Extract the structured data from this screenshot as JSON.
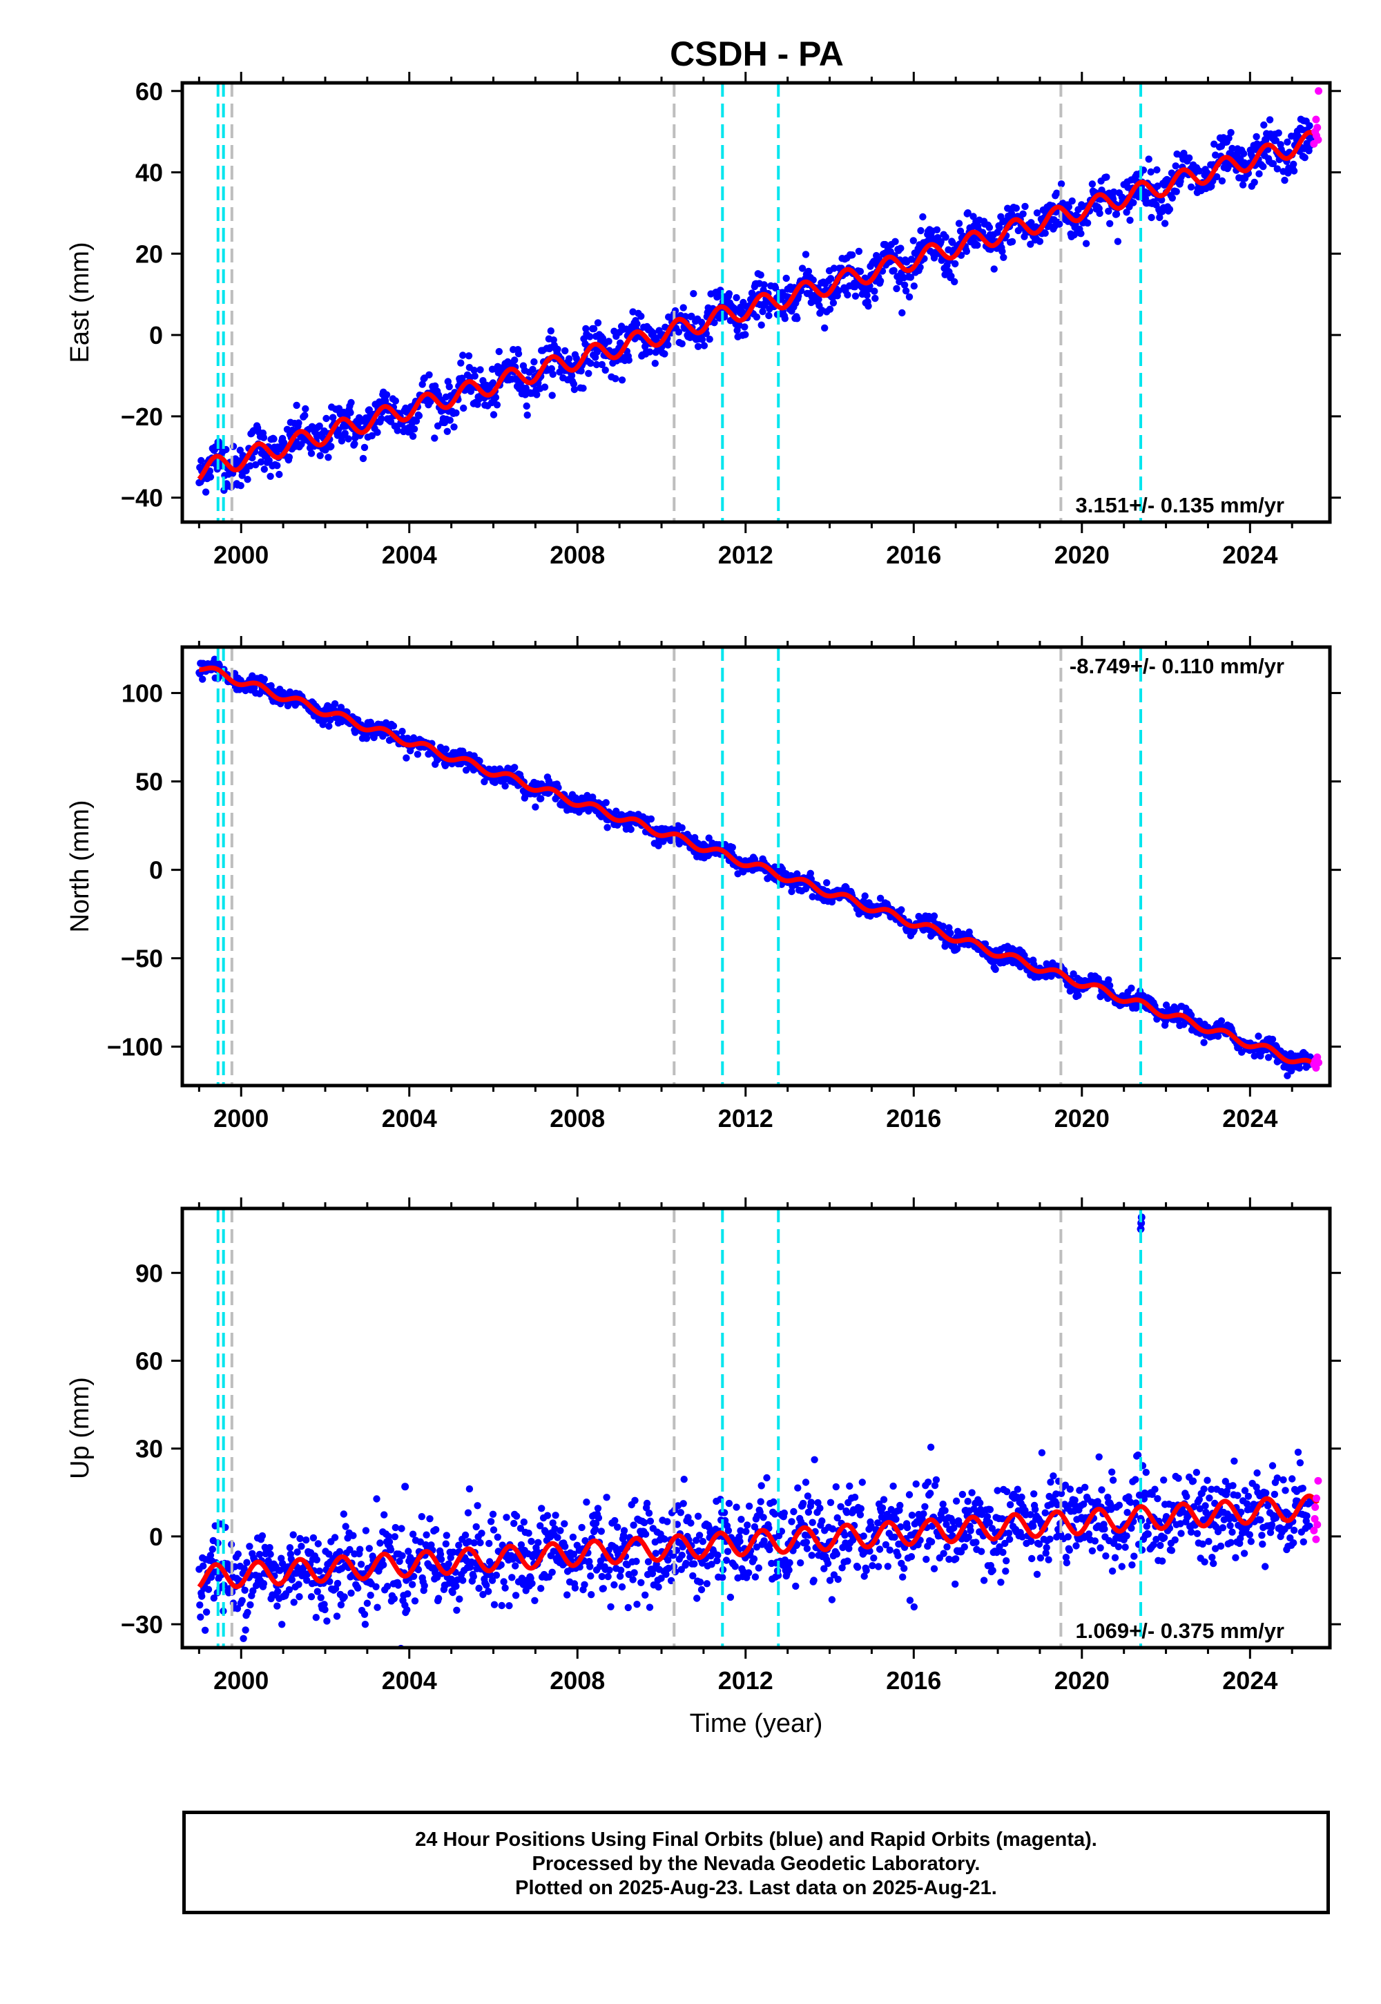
{
  "title": "CSDH - PA",
  "footer": {
    "line1": "24 Hour Positions Using Final Orbits (blue) and Rapid Orbits (magenta).",
    "line2": "Processed by the Nevada Geodetic Laboratory.",
    "line3": "Plotted on 2025-Aug-23. Last data on 2025-Aug-21."
  },
  "colors": {
    "final_orbits": "#0000ff",
    "rapid_orbits": "#ff00ff",
    "model_fit": "#ff0000",
    "cyan_events": "#00e5ee",
    "gray_events": "#bebebe"
  },
  "chart_data": [
    {
      "type": "scatter",
      "panel": "east",
      "ylabel": "East (mm)",
      "xlabel": "",
      "xlim": [
        1998.6,
        2025.9
      ],
      "ylim": [
        -46,
        62
      ],
      "xticks": [
        2000,
        2004,
        2008,
        2012,
        2016,
        2020,
        2024
      ],
      "yticks": [
        -40,
        -20,
        0,
        20,
        40,
        60
      ],
      "rate_label": "3.151+/- 0.135 mm/yr",
      "rate_position": "bottom-right",
      "cyan_lines": [
        1999.45,
        1999.58,
        2011.45,
        2012.78,
        2021.4
      ],
      "gray_lines": [
        1999.78,
        2010.3,
        2019.5
      ],
      "trend": {
        "start": [
          1999.0,
          -33.5
        ],
        "end": [
          2025.6,
          48.0
        ]
      },
      "seasonal_amplitude": 2.4,
      "scatter_spread": 2.8,
      "rapid_points": [
        [
          2025.52,
          47
        ],
        [
          2025.55,
          50
        ],
        [
          2025.57,
          53
        ],
        [
          2025.58,
          49
        ],
        [
          2025.6,
          51
        ],
        [
          2025.62,
          48
        ],
        [
          2025.63,
          60
        ]
      ],
      "outliers": []
    },
    {
      "type": "scatter",
      "panel": "north",
      "ylabel": "North (mm)",
      "xlabel": "",
      "xlim": [
        1998.6,
        2025.9
      ],
      "ylim": [
        -122,
        126
      ],
      "xticks": [
        2000,
        2004,
        2008,
        2012,
        2016,
        2020,
        2024
      ],
      "yticks": [
        -100,
        -50,
        0,
        50,
        100
      ],
      "rate_label": "-8.749+/- 0.110 mm/yr",
      "rate_position": "top-right",
      "cyan_lines": [
        1999.45,
        1999.58,
        2011.45,
        2012.78,
        2021.4
      ],
      "gray_lines": [
        1999.78,
        2010.3,
        2019.5
      ],
      "trend": {
        "start": [
          1999.0,
          115.0
        ],
        "end": [
          2025.6,
          -112.0
        ]
      },
      "seasonal_amplitude": 2.2,
      "scatter_spread": 2.5,
      "rapid_points": [
        [
          2025.52,
          -110
        ],
        [
          2025.55,
          -108
        ],
        [
          2025.57,
          -112
        ],
        [
          2025.6,
          -106
        ],
        [
          2025.63,
          -109
        ]
      ],
      "outliers": []
    },
    {
      "type": "scatter",
      "panel": "up",
      "ylabel": "Up (mm)",
      "xlabel": "Time (year)",
      "xlim": [
        1998.6,
        2025.9
      ],
      "ylim": [
        -38,
        112
      ],
      "xticks": [
        2000,
        2004,
        2008,
        2012,
        2016,
        2020,
        2024
      ],
      "yticks": [
        -30,
        0,
        30,
        60,
        90
      ],
      "rate_label": "1.069+/- 0.375 mm/yr",
      "rate_position": "bottom-right",
      "cyan_lines": [
        1999.45,
        1999.58,
        2011.45,
        2012.78,
        2021.4
      ],
      "gray_lines": [
        1999.78,
        2010.3,
        2019.5
      ],
      "trend": {
        "start": [
          1999.0,
          -14.0
        ],
        "end": [
          2025.6,
          10.0
        ]
      },
      "seasonal_amplitude": 4.0,
      "scatter_spread": 7.5,
      "rapid_points": [
        [
          2025.52,
          2
        ],
        [
          2025.54,
          6
        ],
        [
          2025.55,
          10
        ],
        [
          2025.57,
          -1
        ],
        [
          2025.58,
          13
        ],
        [
          2025.6,
          4
        ],
        [
          2025.62,
          19
        ]
      ],
      "outliers": [
        [
          2021.4,
          105
        ],
        [
          2021.41,
          107
        ],
        [
          2021.42,
          109
        ],
        [
          2003.9,
          17
        ]
      ]
    }
  ]
}
